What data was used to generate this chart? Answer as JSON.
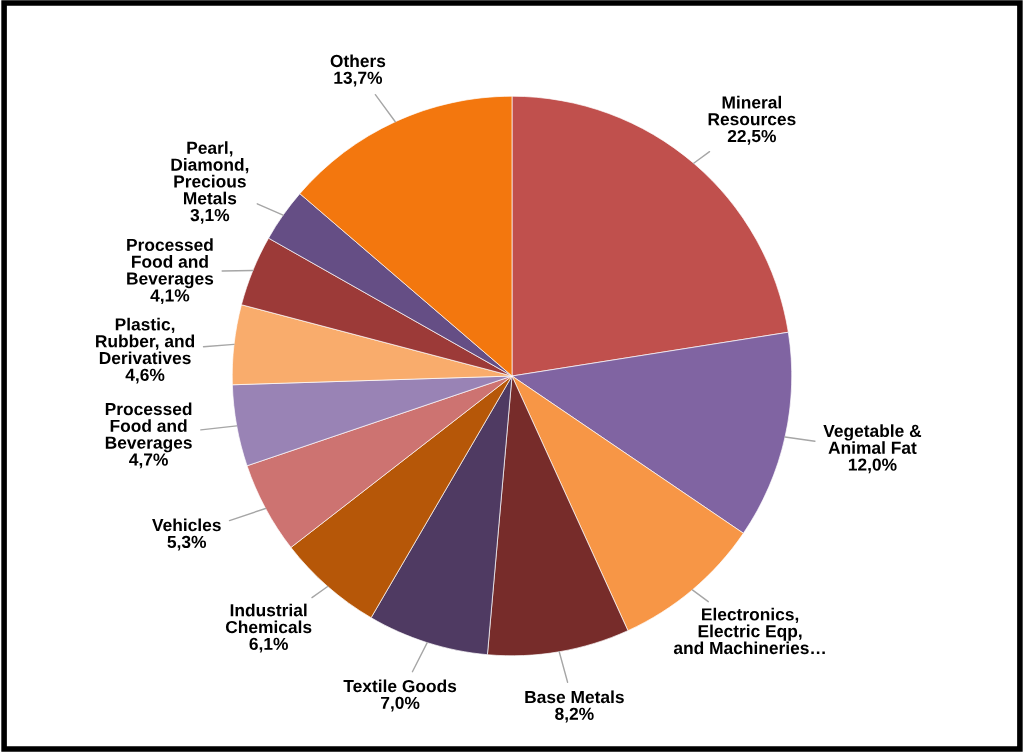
{
  "chart_data": {
    "type": "pie",
    "categories": [
      "Mineral\nResources",
      "Vegetable &\nAnimal Fat",
      "Electronics,\nElectric Eqp,\nand Machineries…",
      "Base Metals",
      "Textile Goods",
      "Industrial\nChemicals",
      "Vehicles",
      "Processed\nFood and\nBeverages",
      "Plastic,\nRubber, and\nDerivatives",
      "Processed\nFood and\nBeverages",
      "Pearl,\nDiamond,\nPrecious\nMetals",
      "Others"
    ],
    "values": [
      22.5,
      12.0,
      8.7,
      8.2,
      7.0,
      6.1,
      5.3,
      4.7,
      4.6,
      4.1,
      3.1,
      13.7
    ],
    "value_labels": [
      "22,5%",
      "12,0%",
      null,
      "8,2%",
      "7,0%",
      "6,1%",
      "5,3%",
      "4,7%",
      "4,6%",
      "4,1%",
      "3,1%",
      "13,7%"
    ],
    "colors": [
      "#c0504d",
      "#8064a2",
      "#f79646",
      "#772c2a",
      "#4f3a62",
      "#b65708",
      "#cd7371",
      "#9983b5",
      "#f9ac6c",
      "#9c3a38",
      "#654e85",
      "#f3770e"
    ]
  }
}
